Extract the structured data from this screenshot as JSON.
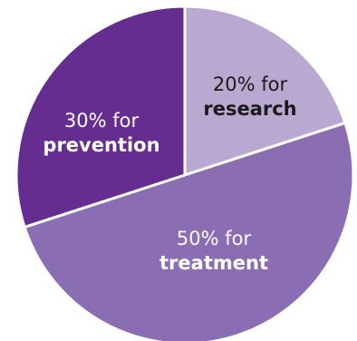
{
  "chart_data": {
    "type": "pie",
    "slices": [
      {
        "value": 20,
        "percent_text": "20% for",
        "category": "research",
        "color": "#b9a8cf",
        "label_color": "#1a1a1a"
      },
      {
        "value": 50,
        "percent_text": "50% for",
        "category": "treatment",
        "color": "#8b6db3",
        "label_color": "#ffffff"
      },
      {
        "value": 30,
        "percent_text": "30% for",
        "category": "prevention",
        "color": "#662d91",
        "label_color": "#ffffff"
      }
    ],
    "start_angle_deg": 0,
    "direction": "clockwise",
    "separator_color": "#ffffff"
  }
}
